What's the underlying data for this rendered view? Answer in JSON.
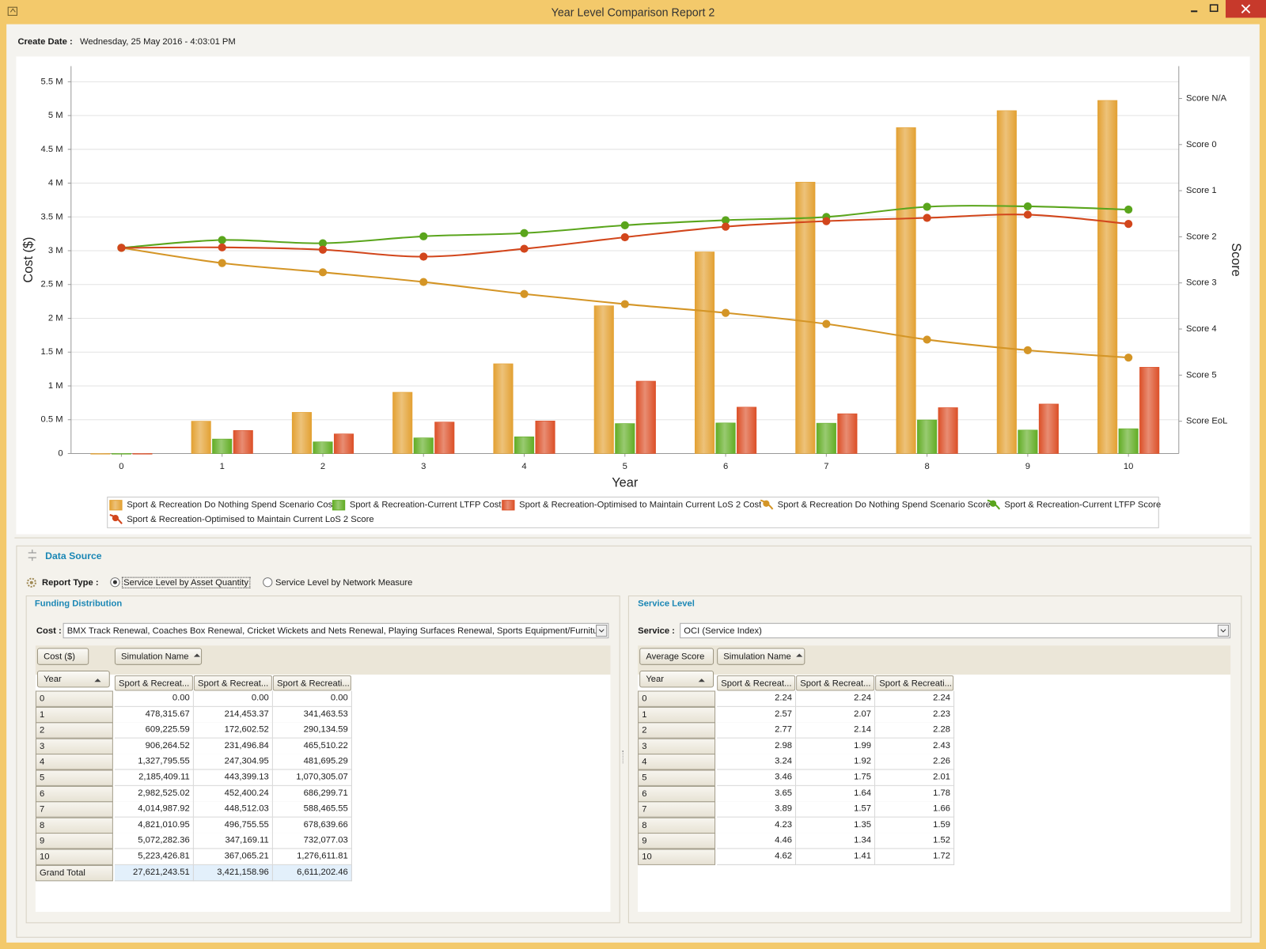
{
  "window": {
    "title": "Year Level Comparison Report 2"
  },
  "create_date": {
    "label": "Create Date :",
    "value": "Wednesday, 25 May 2016 - 4:03:01 PM"
  },
  "chart_data": {
    "type": "bar",
    "x_label": "Year",
    "y_label": "Cost ($)",
    "y2_label": "Score",
    "categories": [
      "0",
      "1",
      "2",
      "3",
      "4",
      "5",
      "6",
      "7",
      "8",
      "9",
      "10"
    ],
    "ylim": [
      0,
      5730000
    ],
    "yticks": [
      0,
      {
        "value": 500000,
        "label": "0.5 M"
      },
      {
        "value": 1000000,
        "label": "1 M"
      },
      {
        "value": 1500000,
        "label": "1.5 M"
      },
      {
        "value": 2000000,
        "label": "2 M"
      },
      {
        "value": 2500000,
        "label": "2.5 M"
      },
      {
        "value": 3000000,
        "label": "3 M"
      },
      {
        "value": 3500000,
        "label": "3.5 M"
      },
      {
        "value": 4000000,
        "label": "4 M"
      },
      {
        "value": 4500000,
        "label": "4.5 M"
      },
      {
        "value": 5000000,
        "label": "5 M"
      },
      {
        "value": 5500000,
        "label": "5.5 M"
      }
    ],
    "y2lim": [
      6.7,
      -1.7
    ],
    "y2ticks": [
      {
        "value": -1,
        "label": "Score N/A"
      },
      {
        "value": 0,
        "label": "Score 0"
      },
      {
        "value": 1,
        "label": "Score 1"
      },
      {
        "value": 2,
        "label": "Score 2"
      },
      {
        "value": 3,
        "label": "Score 3"
      },
      {
        "value": 4,
        "label": "Score 4"
      },
      {
        "value": 5,
        "label": "Score 5"
      },
      {
        "value": 6,
        "label": "Score EoL"
      }
    ],
    "grid": true,
    "series": [
      {
        "name": "Sport & Recreation Do Nothing Spend Scenario Cost",
        "type": "bar",
        "color": "#e3a133",
        "values": [
          0,
          478315.67,
          609225.59,
          906264.52,
          1327795.55,
          2185409.11,
          2982525.02,
          4014987.92,
          4821010.95,
          5072282.36,
          5223426.81
        ]
      },
      {
        "name": "Sport & Recreation-Current LTFP Cost",
        "type": "bar",
        "color": "#62ad25",
        "values": [
          0,
          214453.37,
          172602.52,
          231496.84,
          247304.95,
          443399.13,
          452400.24,
          448512.03,
          496755.55,
          347169.11,
          367065.21
        ]
      },
      {
        "name": "Sport & Recreation-Optimised to Maintain Current LoS 2 Cost",
        "type": "bar",
        "color": "#dc5028",
        "values": [
          0,
          341463.53,
          290134.59,
          465510.22,
          481695.29,
          1070305.07,
          686299.71,
          588465.55,
          678639.66,
          732077.03,
          1276611.81
        ]
      },
      {
        "name": "Sport & Recreation Do Nothing Spend Scenario Score",
        "type": "line",
        "axis": "y2",
        "color": "#d49526",
        "values": [
          2.24,
          2.57,
          2.77,
          2.98,
          3.24,
          3.46,
          3.65,
          3.89,
          4.23,
          4.46,
          4.62
        ]
      },
      {
        "name": "Sport & Recreation-Current LTFP Score",
        "type": "line",
        "axis": "y2",
        "color": "#5aa51c",
        "values": [
          2.24,
          2.07,
          2.14,
          1.99,
          1.92,
          1.75,
          1.64,
          1.57,
          1.35,
          1.34,
          1.41
        ]
      },
      {
        "name": "Sport & Recreation-Optimised to Maintain Current LoS 2 Score",
        "type": "line",
        "axis": "y2",
        "color": "#d2461c",
        "values": [
          2.24,
          2.23,
          2.28,
          2.43,
          2.26,
          2.01,
          1.78,
          1.66,
          1.59,
          1.52,
          1.72
        ]
      }
    ]
  },
  "data_source": {
    "title": "Data Source",
    "report_type": {
      "label": "Report Type :",
      "options": [
        "Service Level by Asset Quantity",
        "Service Level by Network Measure"
      ],
      "selected": 0
    }
  },
  "funding": {
    "title": "Funding Distribution",
    "filter_label": "Cost :",
    "filter_value": "BMX Track Renewal, Coaches Box Renewal, Cricket Wickets and Nets Renewal, Playing Surfaces Renewal, Sports Equipment/Furniture ...",
    "data_field": "Cost ($)",
    "column_field": "Simulation Name",
    "row_field": "Year",
    "columns": [
      "Sport & Recreat...",
      "Sport & Recreat...",
      "Sport & Recreati..."
    ],
    "rows": [
      [
        "0",
        "0.00",
        "0.00",
        "0.00"
      ],
      [
        "1",
        "478,315.67",
        "214,453.37",
        "341,463.53"
      ],
      [
        "2",
        "609,225.59",
        "172,602.52",
        "290,134.59"
      ],
      [
        "3",
        "906,264.52",
        "231,496.84",
        "465,510.22"
      ],
      [
        "4",
        "1,327,795.55",
        "247,304.95",
        "481,695.29"
      ],
      [
        "5",
        "2,185,409.11",
        "443,399.13",
        "1,070,305.07"
      ],
      [
        "6",
        "2,982,525.02",
        "452,400.24",
        "686,299.71"
      ],
      [
        "7",
        "4,014,987.92",
        "448,512.03",
        "588,465.55"
      ],
      [
        "8",
        "4,821,010.95",
        "496,755.55",
        "678,639.66"
      ],
      [
        "9",
        "5,072,282.36",
        "347,169.11",
        "732,077.03"
      ],
      [
        "10",
        "5,223,426.81",
        "367,065.21",
        "1,276,611.81"
      ]
    ],
    "total": [
      "Grand Total",
      "27,621,243.51",
      "3,421,158.96",
      "6,611,202.46"
    ]
  },
  "service": {
    "title": "Service Level",
    "filter_label": "Service :",
    "filter_value": "OCI (Service Index)",
    "data_field": "Average Score",
    "column_field": "Simulation Name",
    "row_field": "Year",
    "columns": [
      "Sport & Recreat...",
      "Sport & Recreat...",
      "Sport & Recreati..."
    ],
    "rows": [
      [
        "0",
        "2.24",
        "2.24",
        "2.24"
      ],
      [
        "1",
        "2.57",
        "2.07",
        "2.23"
      ],
      [
        "2",
        "2.77",
        "2.14",
        "2.28"
      ],
      [
        "3",
        "2.98",
        "1.99",
        "2.43"
      ],
      [
        "4",
        "3.24",
        "1.92",
        "2.26"
      ],
      [
        "5",
        "3.46",
        "1.75",
        "2.01"
      ],
      [
        "6",
        "3.65",
        "1.64",
        "1.78"
      ],
      [
        "7",
        "3.89",
        "1.57",
        "1.66"
      ],
      [
        "8",
        "4.23",
        "1.35",
        "1.59"
      ],
      [
        "9",
        "4.46",
        "1.34",
        "1.52"
      ],
      [
        "10",
        "4.62",
        "1.41",
        "1.72"
      ]
    ]
  }
}
